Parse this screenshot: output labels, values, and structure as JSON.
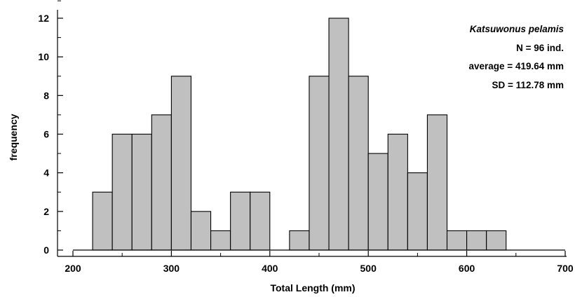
{
  "chart_data": {
    "type": "bar",
    "subtype": "histogram",
    "xlabel": "Total Length (mm)",
    "ylabel": "frequency",
    "xlim": [
      200,
      700
    ],
    "ylim": [
      0,
      12
    ],
    "xticks": [
      200,
      300,
      400,
      500,
      600,
      700
    ],
    "yticks": [
      0,
      2,
      4,
      6,
      8,
      10,
      12
    ],
    "bin_width": 20,
    "bins": [
      {
        "x0": 220,
        "x1": 240,
        "value": 3
      },
      {
        "x0": 240,
        "x1": 260,
        "value": 6
      },
      {
        "x0": 260,
        "x1": 280,
        "value": 6
      },
      {
        "x0": 280,
        "x1": 300,
        "value": 7
      },
      {
        "x0": 300,
        "x1": 320,
        "value": 9
      },
      {
        "x0": 320,
        "x1": 340,
        "value": 2
      },
      {
        "x0": 340,
        "x1": 360,
        "value": 1
      },
      {
        "x0": 360,
        "x1": 380,
        "value": 3
      },
      {
        "x0": 380,
        "x1": 400,
        "value": 3
      },
      {
        "x0": 420,
        "x1": 440,
        "value": 1
      },
      {
        "x0": 440,
        "x1": 460,
        "value": 9
      },
      {
        "x0": 460,
        "x1": 480,
        "value": 12
      },
      {
        "x0": 480,
        "x1": 500,
        "value": 9
      },
      {
        "x0": 500,
        "x1": 520,
        "value": 5
      },
      {
        "x0": 520,
        "x1": 540,
        "value": 6
      },
      {
        "x0": 540,
        "x1": 560,
        "value": 4
      },
      {
        "x0": 560,
        "x1": 580,
        "value": 7
      },
      {
        "x0": 580,
        "x1": 600,
        "value": 1
      },
      {
        "x0": 600,
        "x1": 620,
        "value": 1
      },
      {
        "x0": 620,
        "x1": 640,
        "value": 1
      }
    ],
    "annotations": {
      "species": "Katsuwonus pelamis",
      "n": "N = 96 ind.",
      "average": "average = 419.64 mm",
      "sd": "SD = 112.78 mm"
    },
    "bar_fill": "#c0c0c0",
    "bar_stroke": "#000000",
    "legend_position": "top-right",
    "grid": false
  }
}
